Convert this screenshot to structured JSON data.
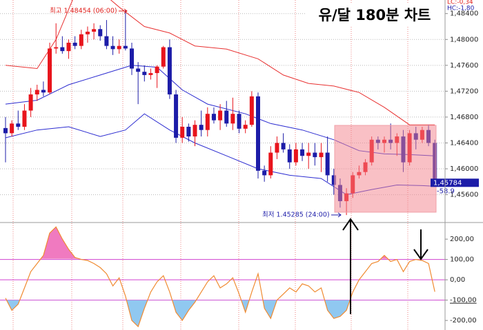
{
  "chart_data": {
    "type": "candlestick",
    "title": "유/달 180분 차트",
    "high_label": "최고 1.48454 (06:00)",
    "low_label": "최저 1.45285 (24:00)",
    "last_price_label": "1,45784",
    "cci_last_label": "-58.9",
    "lc_label": "LC:-0,34",
    "hc_label": "HC:-1,80",
    "up_color": "#e8141c",
    "down_color": "#1c1ca8",
    "open": [
      1.4663,
      1.4655,
      1.467,
      1.4665,
      1.469,
      1.4715,
      1.4722,
      1.4718,
      1.4786,
      1.4788,
      1.4782,
      1.4795,
      1.479,
      1.4808,
      1.4812,
      1.4816,
      1.4805,
      1.479,
      1.4785,
      1.479,
      1.4786,
      1.4755,
      1.475,
      1.4745,
      1.4748,
      1.4758,
      1.4788,
      1.4715,
      1.4648,
      1.4665,
      1.465,
      1.4668,
      1.466,
      1.4685,
      1.4675,
      1.469,
      1.467,
      1.4685,
      1.4662,
      1.4668,
      1.4712,
      1.4597,
      1.459,
      1.4625,
      1.464,
      1.463,
      1.461,
      1.463,
      1.462,
      1.4625,
      1.4618,
      1.4625,
      1.459,
      1.4575,
      1.455,
      1.4562,
      1.459,
      1.4595,
      1.461,
      1.4645,
      1.464,
      1.4645,
      1.464,
      1.465,
      1.461,
      1.4655,
      1.4645,
      1.466,
      1.464
    ],
    "high": [
      1.468,
      1.4675,
      1.469,
      1.47,
      1.4725,
      1.473,
      1.4735,
      1.4795,
      1.4825,
      1.4805,
      1.48,
      1.4805,
      1.4815,
      1.482,
      1.4825,
      1.4822,
      1.483,
      1.4805,
      1.48,
      1.48454,
      1.4795,
      1.4765,
      1.476,
      1.4755,
      1.476,
      1.479,
      1.48,
      1.4722,
      1.468,
      1.467,
      1.4675,
      1.469,
      1.4695,
      1.4695,
      1.47,
      1.4705,
      1.471,
      1.469,
      1.4675,
      1.472,
      1.4718,
      1.4605,
      1.4635,
      1.465,
      1.4655,
      1.4638,
      1.464,
      1.464,
      1.464,
      1.464,
      1.464,
      1.465,
      1.46,
      1.4585,
      1.457,
      1.4595,
      1.4605,
      1.4615,
      1.465,
      1.465,
      1.465,
      1.467,
      1.4655,
      1.466,
      1.466,
      1.4665,
      1.4665,
      1.4668,
      1.4645
    ],
    "low": [
      1.461,
      1.465,
      1.466,
      1.466,
      1.468,
      1.4705,
      1.4712,
      1.4715,
      1.4778,
      1.4778,
      1.477,
      1.4785,
      1.4785,
      1.4795,
      1.48,
      1.4798,
      1.4785,
      1.4776,
      1.4778,
      1.4783,
      1.4745,
      1.47,
      1.4735,
      1.4738,
      1.4725,
      1.4755,
      1.4708,
      1.464,
      1.464,
      1.4642,
      1.4635,
      1.465,
      1.465,
      1.467,
      1.466,
      1.4665,
      1.466,
      1.4655,
      1.4655,
      1.4665,
      1.4585,
      1.458,
      1.4585,
      1.4615,
      1.4625,
      1.46,
      1.4605,
      1.4612,
      1.46,
      1.4605,
      1.4595,
      1.458,
      1.456,
      1.454,
      1.45285,
      1.4555,
      1.4585,
      1.459,
      1.4605,
      1.463,
      1.4625,
      1.463,
      1.462,
      1.4595,
      1.4605,
      1.463,
      1.464,
      1.4635,
      1.4575
    ],
    "close": [
      1.4655,
      1.467,
      1.4665,
      1.469,
      1.4715,
      1.4722,
      1.4718,
      1.4786,
      1.4788,
      1.4782,
      1.4795,
      1.479,
      1.4808,
      1.4812,
      1.4816,
      1.4805,
      1.479,
      1.4785,
      1.479,
      1.4786,
      1.4755,
      1.475,
      1.4745,
      1.4748,
      1.4758,
      1.4788,
      1.4715,
      1.4648,
      1.4665,
      1.465,
      1.4668,
      1.466,
      1.4685,
      1.4675,
      1.469,
      1.467,
      1.4685,
      1.4662,
      1.4668,
      1.4712,
      1.4597,
      1.459,
      1.4625,
      1.464,
      1.463,
      1.461,
      1.463,
      1.462,
      1.4625,
      1.4618,
      1.4625,
      1.459,
      1.4575,
      1.455,
      1.4562,
      1.459,
      1.4595,
      1.461,
      1.4645,
      1.464,
      1.4645,
      1.464,
      1.465,
      1.461,
      1.4655,
      1.4645,
      1.466,
      1.464,
      1.45784
    ],
    "bands": [
      {
        "color": "#e83030",
        "x": [
          0,
          5,
          8,
          11,
          15,
          18,
          22,
          26,
          30,
          35,
          40,
          44,
          48,
          52,
          56,
          60,
          64,
          68
        ],
        "values": [
          1.476,
          1.4755,
          1.48,
          1.487,
          1.4875,
          1.485,
          1.482,
          1.481,
          1.479,
          1.4785,
          1.477,
          1.4745,
          1.4732,
          1.4728,
          1.4718,
          1.4695,
          1.4668,
          1.4668
        ]
      },
      {
        "color": "#2a2ad0",
        "x": [
          0,
          5,
          10,
          15,
          20,
          24,
          28,
          32,
          38,
          42,
          47,
          52,
          56,
          60,
          64,
          68
        ],
        "values": [
          1.47,
          1.4706,
          1.473,
          1.4745,
          1.476,
          1.4757,
          1.4722,
          1.47,
          1.4685,
          1.467,
          1.466,
          1.4645,
          1.4628,
          1.4623,
          1.4622,
          1.462
        ]
      },
      {
        "color": "#2a2ad0",
        "x": [
          0,
          5,
          10,
          15,
          19,
          22,
          26,
          30,
          35,
          40,
          45,
          50,
          54,
          58,
          62,
          66,
          68
        ],
        "values": [
          1.4648,
          1.466,
          1.4665,
          1.465,
          1.466,
          1.4685,
          1.466,
          1.464,
          1.462,
          1.46,
          1.459,
          1.4585,
          1.456,
          1.4568,
          1.4575,
          1.4574,
          1.4573
        ]
      }
    ],
    "ylim": [
      1.4518,
      1.4861
    ],
    "yticks": [
      {
        "value": 1.484,
        "label": "1,48400"
      },
      {
        "value": 1.48,
        "label": "1,48000"
      },
      {
        "value": 1.476,
        "label": "1,47600"
      },
      {
        "value": 1.472,
        "label": "1,47200"
      },
      {
        "value": 1.468,
        "label": "1,46800"
      },
      {
        "value": 1.464,
        "label": "1,46400"
      },
      {
        "value": 1.46,
        "label": "1,46000"
      },
      {
        "value": 1.456,
        "label": "1,45600"
      }
    ],
    "grid": true,
    "cci": {
      "color": "#f08a30",
      "over_color": "#f07ac0",
      "under_color": "#90c8f0",
      "level_color": "#d040d0",
      "values": [
        -90,
        -150,
        -120,
        -40,
        40,
        80,
        120,
        230,
        260,
        200,
        150,
        110,
        100,
        95,
        80,
        60,
        30,
        -30,
        10,
        -80,
        -200,
        -230,
        -140,
        -60,
        -10,
        20,
        -60,
        -160,
        -200,
        -150,
        -110,
        -60,
        -10,
        20,
        -40,
        -20,
        10,
        -70,
        -160,
        -60,
        30,
        -140,
        -190,
        -100,
        -70,
        -40,
        -60,
        -20,
        -30,
        -60,
        -40,
        -150,
        -190,
        -180,
        -150,
        -60,
        0,
        40,
        80,
        90,
        120,
        90,
        100,
        40,
        90,
        100,
        95,
        80,
        -58.9
      ],
      "ylim": [
        -247,
        275
      ],
      "yticks": [
        {
          "value": 200,
          "label": "200,00"
        },
        {
          "value": 100,
          "label": "100,00"
        },
        {
          "value": 0,
          "label": "0,00"
        },
        {
          "value": -100,
          "label": "-100,00"
        },
        {
          "value": -200,
          "label": "-200,00"
        }
      ]
    }
  }
}
